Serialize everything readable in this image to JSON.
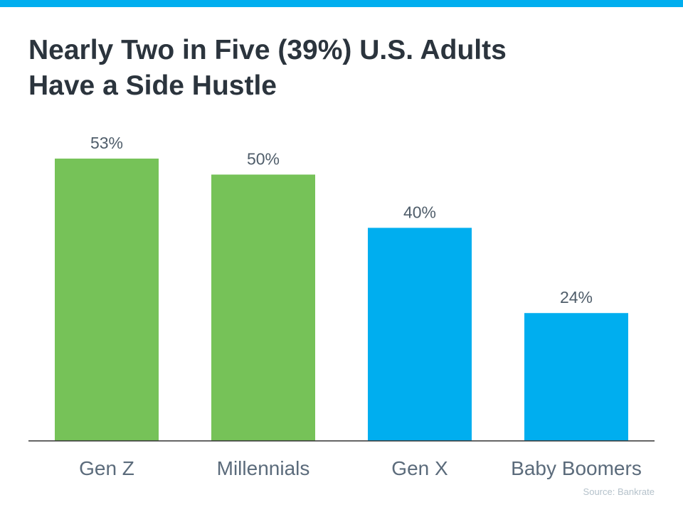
{
  "chart_data": {
    "type": "bar",
    "title": [
      "Nearly Two in Five (39%) U.S. Adults",
      "Have a Side Hustle"
    ],
    "categories": [
      "Gen Z",
      "Millennials",
      "Gen X",
      "Baby Boomers"
    ],
    "values": [
      53,
      50,
      40,
      24
    ],
    "value_labels": [
      "53%",
      "50%",
      "40%",
      "24%"
    ],
    "colors": [
      "#76c258",
      "#76c258",
      "#00aeef",
      "#00aeef"
    ],
    "source": "Source: Bankrate"
  }
}
